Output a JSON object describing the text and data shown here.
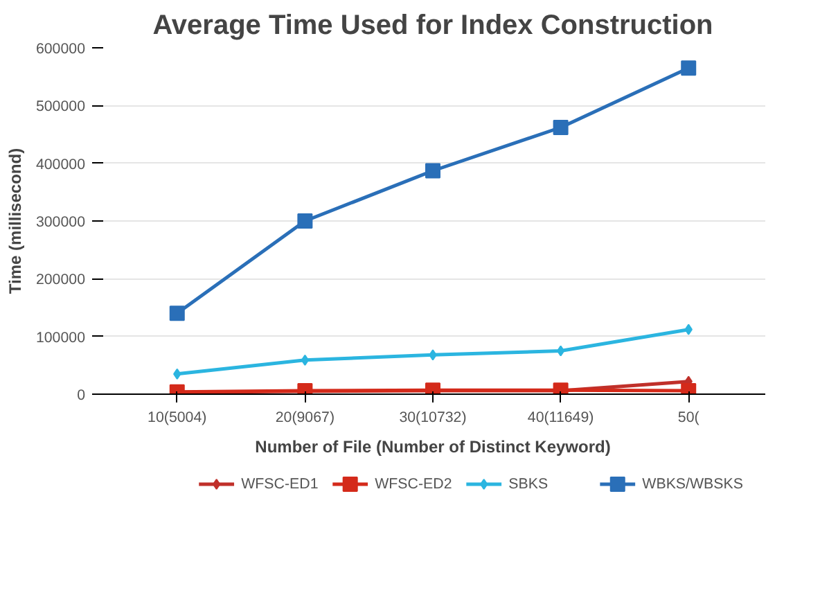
{
  "chart_data": {
    "type": "line",
    "title": "Average Time Used for Index Construction",
    "xlabel": "Number of File (Number of Distinct Keyword)",
    "ylabel": "Time (millisecond)",
    "categories": [
      "10(5004)",
      "20(9067)",
      "30(10732)",
      "40(11649)",
      "50("
    ],
    "series": [
      {
        "name": "WFSC-ED1",
        "color": "#c0302a",
        "marker": "diamond",
        "values": [
          3000,
          5000,
          6000,
          6000,
          22000
        ]
      },
      {
        "name": "WFSC-ED2",
        "color": "#d42a1a",
        "marker": "square",
        "values": [
          4000,
          6000,
          7000,
          7000,
          6000
        ]
      },
      {
        "name": "SBKS",
        "color": "#2bb5e0",
        "marker": "diamond",
        "values": [
          35000,
          59000,
          68000,
          75000,
          112000
        ]
      },
      {
        "name": "WBKS/WBSKS",
        "color": "#2a6fb8",
        "marker": "square",
        "values": [
          140000,
          300000,
          387000,
          462000,
          565000
        ]
      }
    ],
    "ylim": [
      0,
      600000
    ],
    "yticks": [
      0,
      100000,
      200000,
      300000,
      400000,
      500000,
      600000
    ],
    "grid": "y",
    "legend": "bottom"
  }
}
